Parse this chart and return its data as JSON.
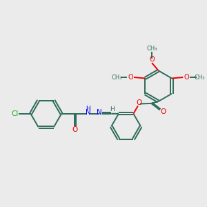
{
  "bg_color": "#ebebeb",
  "bond_color": "#2d6b5a",
  "N_color": "#0000ee",
  "O_color": "#ee0000",
  "Cl_color": "#22aa22",
  "lw": 1.4,
  "dbgap": 0.055,
  "xlim": [
    0,
    10
  ],
  "ylim": [
    0,
    10
  ]
}
